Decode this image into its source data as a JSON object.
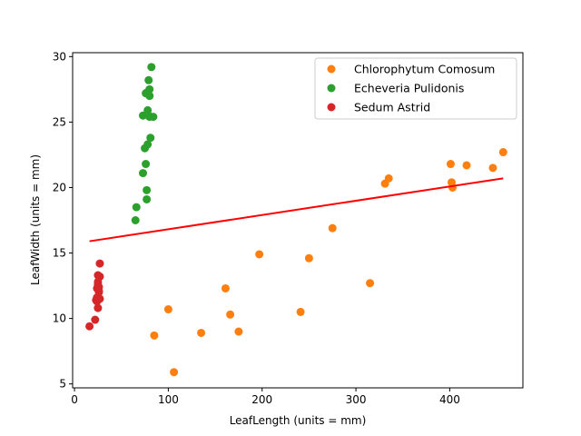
{
  "chart_data": {
    "type": "scatter",
    "title": "",
    "xlabel": "LeafLength (units = mm)",
    "ylabel": "LeafWidth (units = mm)",
    "xlim": [
      -2,
      478
    ],
    "ylim": [
      4.7,
      30.3
    ],
    "xticks": [
      0,
      100,
      200,
      300,
      400
    ],
    "yticks": [
      5,
      10,
      15,
      20,
      25,
      30
    ],
    "grid": false,
    "legend_position": "upper-right",
    "series": [
      {
        "name": "Chlorophytum Comosum",
        "color": "#ff7f0e",
        "points": [
          [
            85,
            8.7
          ],
          [
            100,
            10.7
          ],
          [
            106,
            5.9
          ],
          [
            135,
            8.9
          ],
          [
            161,
            12.3
          ],
          [
            166,
            10.3
          ],
          [
            175,
            9.0
          ],
          [
            197,
            14.9
          ],
          [
            241,
            10.5
          ],
          [
            250,
            14.6
          ],
          [
            275,
            16.9
          ],
          [
            315,
            12.7
          ],
          [
            331,
            20.3
          ],
          [
            335,
            20.7
          ],
          [
            401,
            21.8
          ],
          [
            402,
            20.4
          ],
          [
            403,
            20.0
          ],
          [
            418,
            21.7
          ],
          [
            446,
            21.5
          ],
          [
            457,
            22.7
          ]
        ]
      },
      {
        "name": "Echeveria Pulidonis",
        "color": "#2ca02c",
        "points": [
          [
            65,
            17.5
          ],
          [
            66,
            18.5
          ],
          [
            73,
            21.1
          ],
          [
            73,
            25.5
          ],
          [
            75,
            23.0
          ],
          [
            76,
            27.2
          ],
          [
            76,
            21.8
          ],
          [
            77,
            19.8
          ],
          [
            77,
            19.1
          ],
          [
            78,
            25.9
          ],
          [
            78,
            23.3
          ],
          [
            79,
            28.2
          ],
          [
            80,
            27.0
          ],
          [
            80,
            25.4
          ],
          [
            80,
            27.5
          ],
          [
            81,
            23.8
          ],
          [
            82,
            29.2
          ],
          [
            84,
            25.4
          ],
          [
            78,
            27.3
          ],
          [
            79,
            25.5
          ]
        ]
      },
      {
        "name": "Sedum Astrid",
        "color": "#d62728",
        "points": [
          [
            16,
            9.4
          ],
          [
            22,
            9.9
          ],
          [
            23,
            11.4
          ],
          [
            24,
            11.3
          ],
          [
            24,
            11.6
          ],
          [
            25,
            12.6
          ],
          [
            25,
            13.3
          ],
          [
            25,
            12.8
          ],
          [
            25,
            10.8
          ],
          [
            26,
            12.1
          ],
          [
            26,
            12.0
          ],
          [
            26,
            12.4
          ],
          [
            27,
            13.2
          ],
          [
            27,
            14.2
          ],
          [
            27,
            11.5
          ],
          [
            24,
            12.3
          ]
        ]
      }
    ],
    "trendline": {
      "color": "#ff0000",
      "x": [
        16,
        457
      ],
      "y": [
        15.9,
        20.7
      ]
    }
  }
}
